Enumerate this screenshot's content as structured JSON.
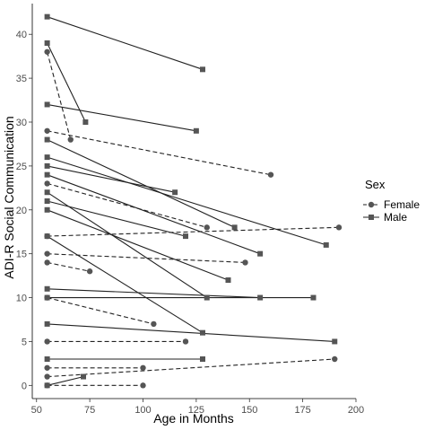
{
  "chart_data": {
    "type": "line",
    "title": "",
    "xlabel": "Age in Months",
    "ylabel": "ADI-R Social Communication",
    "xlim": [
      48,
      200
    ],
    "ylim": [
      -1.5,
      43.5
    ],
    "x_ticks": [
      50,
      75,
      100,
      125,
      150,
      175,
      200
    ],
    "y_ticks": [
      0,
      5,
      10,
      15,
      20,
      25,
      30,
      35,
      40
    ],
    "grid": false,
    "legend": {
      "title": "Sex",
      "position": "right",
      "entries": [
        {
          "name": "Female",
          "marker": "circle",
          "dash": "dashed"
        },
        {
          "name": "Male",
          "marker": "square",
          "dash": "solid"
        }
      ]
    },
    "series": [
      {
        "name": "Male",
        "subject": 1,
        "x": [
          55,
          128
        ],
        "y": [
          42,
          36
        ]
      },
      {
        "name": "Male",
        "subject": 2,
        "x": [
          55,
          73
        ],
        "y": [
          39,
          30
        ]
      },
      {
        "name": "Female",
        "subject": 3,
        "x": [
          55,
          66
        ],
        "y": [
          38,
          28
        ]
      },
      {
        "name": "Male",
        "subject": 4,
        "x": [
          55,
          125
        ],
        "y": [
          32,
          29
        ]
      },
      {
        "name": "Female",
        "subject": 5,
        "x": [
          55,
          160
        ],
        "y": [
          29,
          24
        ]
      },
      {
        "name": "Male",
        "subject": 6,
        "x": [
          55,
          143
        ],
        "y": [
          28,
          18
        ]
      },
      {
        "name": "Male",
        "subject": 7,
        "x": [
          55,
          186
        ],
        "y": [
          26,
          16
        ]
      },
      {
        "name": "Male",
        "subject": 8,
        "x": [
          55,
          115
        ],
        "y": [
          25,
          22
        ]
      },
      {
        "name": "Male",
        "subject": 9,
        "x": [
          55,
          155
        ],
        "y": [
          24,
          15
        ]
      },
      {
        "name": "Female",
        "subject": 10,
        "x": [
          55,
          130
        ],
        "y": [
          23,
          18
        ]
      },
      {
        "name": "Male",
        "subject": 11,
        "x": [
          55,
          130
        ],
        "y": [
          22,
          10
        ]
      },
      {
        "name": "Male",
        "subject": 12,
        "x": [
          55,
          120
        ],
        "y": [
          21,
          17
        ]
      },
      {
        "name": "Male",
        "subject": 13,
        "x": [
          55,
          140
        ],
        "y": [
          20,
          12
        ]
      },
      {
        "name": "Female",
        "subject": 14,
        "x": [
          55,
          192
        ],
        "y": [
          17,
          18
        ]
      },
      {
        "name": "Male",
        "subject": 15,
        "x": [
          55,
          128
        ],
        "y": [
          17,
          6
        ]
      },
      {
        "name": "Female",
        "subject": 16,
        "x": [
          55,
          148
        ],
        "y": [
          15,
          14
        ]
      },
      {
        "name": "Female",
        "subject": 17,
        "x": [
          55,
          75
        ],
        "y": [
          14,
          13
        ]
      },
      {
        "name": "Male",
        "subject": 18,
        "x": [
          55,
          155
        ],
        "y": [
          11,
          10
        ]
      },
      {
        "name": "Male",
        "subject": 19,
        "x": [
          55,
          180
        ],
        "y": [
          10,
          10
        ]
      },
      {
        "name": "Female",
        "subject": 20,
        "x": [
          55,
          105
        ],
        "y": [
          10,
          7
        ]
      },
      {
        "name": "Male",
        "subject": 21,
        "x": [
          55,
          190
        ],
        "y": [
          7,
          5
        ]
      },
      {
        "name": "Female",
        "subject": 22,
        "x": [
          55,
          120
        ],
        "y": [
          5,
          5
        ]
      },
      {
        "name": "Male",
        "subject": 23,
        "x": [
          55,
          128
        ],
        "y": [
          3,
          3
        ]
      },
      {
        "name": "Female",
        "subject": 24,
        "x": [
          55,
          100
        ],
        "y": [
          2,
          2
        ]
      },
      {
        "name": "Female",
        "subject": 25,
        "x": [
          55,
          190
        ],
        "y": [
          1,
          3
        ]
      },
      {
        "name": "Male",
        "subject": 26,
        "x": [
          55,
          72
        ],
        "y": [
          0,
          1
        ]
      },
      {
        "name": "Female",
        "subject": 27,
        "x": [
          55,
          100
        ],
        "y": [
          0,
          0
        ]
      }
    ]
  }
}
